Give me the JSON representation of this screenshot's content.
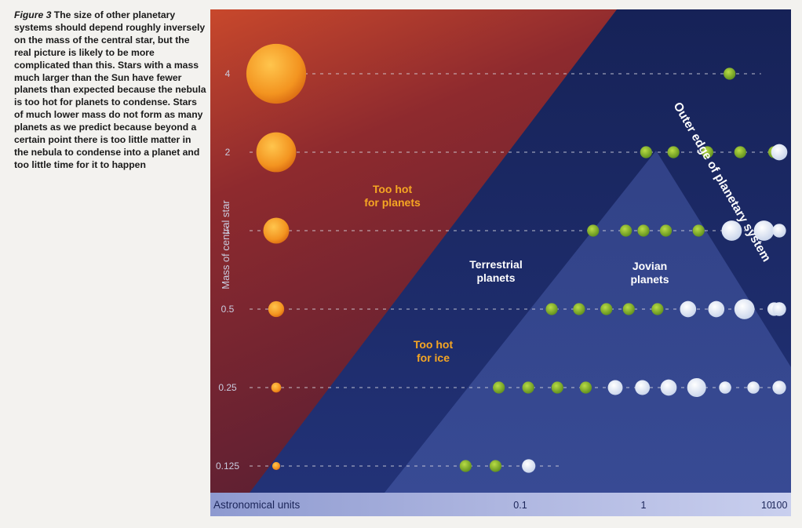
{
  "caption": {
    "figure_label": "Figure 3",
    "text": "The size of other planetary systems should depend roughly inversely on the mass of the central star, but the real picture is likely to be more complicated than this. Stars with a mass much larger than the Sun have fewer planets than expected because the nebula is too hot for planets to condense. Stars of much lower mass do not form as many planets as we predict because beyond a certain point there is too little matter in the nebula to condense into a planet and too little time for it to happen"
  },
  "chart_data": {
    "type": "scatter",
    "xlabel": "Astronomical units",
    "ylabel": "Mass of central star",
    "x_scale": "log",
    "x_ticks": [
      "0.1",
      "1",
      "10",
      "100"
    ],
    "y_ticks": [
      "4",
      "2",
      "1",
      "0.5",
      "0.25",
      "0.125"
    ],
    "regions": {
      "too_hot_planets": "Too hot for planets",
      "too_hot_ice": "Too hot for ice",
      "terrestrial": "Terrestrial planets",
      "jovian": "Jovian planets",
      "outer_edge": "Outer edge of planetary system"
    },
    "colors": {
      "hot_region": "#7d2230",
      "cool_region": "#1d2a5e",
      "terrestrial_planet": "#8fbf2a",
      "jovian_planet": "#e8eef8",
      "star": "#f5a623",
      "region_label": "#f5a623"
    },
    "stars": [
      {
        "mass": "4",
        "size": 3
      },
      {
        "mass": "2",
        "size": 2
      },
      {
        "mass": "1",
        "size": 1.3
      },
      {
        "mass": "0.5",
        "size": 0.8
      },
      {
        "mass": "0.25",
        "size": 0.5
      },
      {
        "mass": "0.125",
        "size": 0.4
      }
    ],
    "rows": [
      {
        "mass": "4",
        "planets": [
          {
            "au": 5,
            "type": "terrestrial",
            "size": 1
          }
        ]
      },
      {
        "mass": "2",
        "planets": [
          {
            "au": 1.05,
            "type": "terrestrial",
            "size": 1
          },
          {
            "au": 1.75,
            "type": "terrestrial",
            "size": 1
          },
          {
            "au": 3.3,
            "type": "terrestrial",
            "size": 1
          },
          {
            "au": 6.1,
            "type": "terrestrial",
            "size": 1
          },
          {
            "au": 11.5,
            "type": "terrestrial",
            "size": 1
          },
          {
            "au": 16,
            "type": "jovian",
            "size": 1.2
          }
        ]
      },
      {
        "mass": "1",
        "planets": [
          {
            "au": 0.39,
            "type": "terrestrial",
            "size": 1
          },
          {
            "au": 0.72,
            "type": "terrestrial",
            "size": 1
          },
          {
            "au": 1.0,
            "type": "terrestrial",
            "size": 1
          },
          {
            "au": 1.52,
            "type": "terrestrial",
            "size": 1
          },
          {
            "au": 2.8,
            "type": "terrestrial",
            "size": 1
          },
          {
            "au": 5.2,
            "type": "jovian",
            "size": 1.5
          },
          {
            "au": 9.5,
            "type": "jovian",
            "size": 1.5
          },
          {
            "au": 19.2,
            "type": "jovian",
            "size": 1
          },
          {
            "au": 30,
            "type": "jovian",
            "size": 1
          }
        ]
      },
      {
        "mass": "0.5",
        "planets": [
          {
            "au": 0.18,
            "type": "terrestrial",
            "size": 1
          },
          {
            "au": 0.3,
            "type": "terrestrial",
            "size": 1
          },
          {
            "au": 0.5,
            "type": "terrestrial",
            "size": 1
          },
          {
            "au": 0.76,
            "type": "terrestrial",
            "size": 1
          },
          {
            "au": 1.3,
            "type": "terrestrial",
            "size": 1
          },
          {
            "au": 2.3,
            "type": "jovian",
            "size": 1.2
          },
          {
            "au": 3.9,
            "type": "jovian",
            "size": 1.2
          },
          {
            "au": 6.6,
            "type": "jovian",
            "size": 1.5
          },
          {
            "au": 11.5,
            "type": "jovian",
            "size": 1
          },
          {
            "au": 17,
            "type": "jovian",
            "size": 1
          },
          {
            "au": 28,
            "type": "jovian",
            "size": 1
          },
          {
            "au": 45,
            "type": "jovian",
            "size": 1
          },
          {
            "au": 75,
            "type": "jovian",
            "size": 1
          }
        ]
      },
      {
        "mass": "0.25",
        "planets": [
          {
            "au": 0.067,
            "type": "terrestrial",
            "size": 1
          },
          {
            "au": 0.116,
            "type": "terrestrial",
            "size": 1
          },
          {
            "au": 0.2,
            "type": "terrestrial",
            "size": 1
          },
          {
            "au": 0.34,
            "type": "terrestrial",
            "size": 1
          },
          {
            "au": 0.59,
            "type": "jovian",
            "size": 1.1
          },
          {
            "au": 0.98,
            "type": "jovian",
            "size": 1.1
          },
          {
            "au": 1.6,
            "type": "jovian",
            "size": 1.2
          },
          {
            "au": 2.7,
            "type": "jovian",
            "size": 1.4
          },
          {
            "au": 4.6,
            "type": "jovian",
            "size": 0.9
          },
          {
            "au": 7.8,
            "type": "jovian",
            "size": 0.9
          },
          {
            "au": 13.3,
            "type": "jovian",
            "size": 0.9
          },
          {
            "au": 22.6,
            "type": "jovian",
            "size": 0.9
          },
          {
            "au": 38.5,
            "type": "jovian",
            "size": 0.9
          },
          {
            "au": 65,
            "type": "jovian",
            "size": 1
          },
          {
            "au": 110,
            "type": "jovian",
            "size": 1
          }
        ]
      },
      {
        "mass": "0.125",
        "planets": [
          {
            "au": 0.036,
            "type": "terrestrial",
            "size": 1
          },
          {
            "au": 0.063,
            "type": "terrestrial",
            "size": 1
          },
          {
            "au": 0.117,
            "type": "jovian",
            "size": 1
          }
        ]
      }
    ]
  }
}
